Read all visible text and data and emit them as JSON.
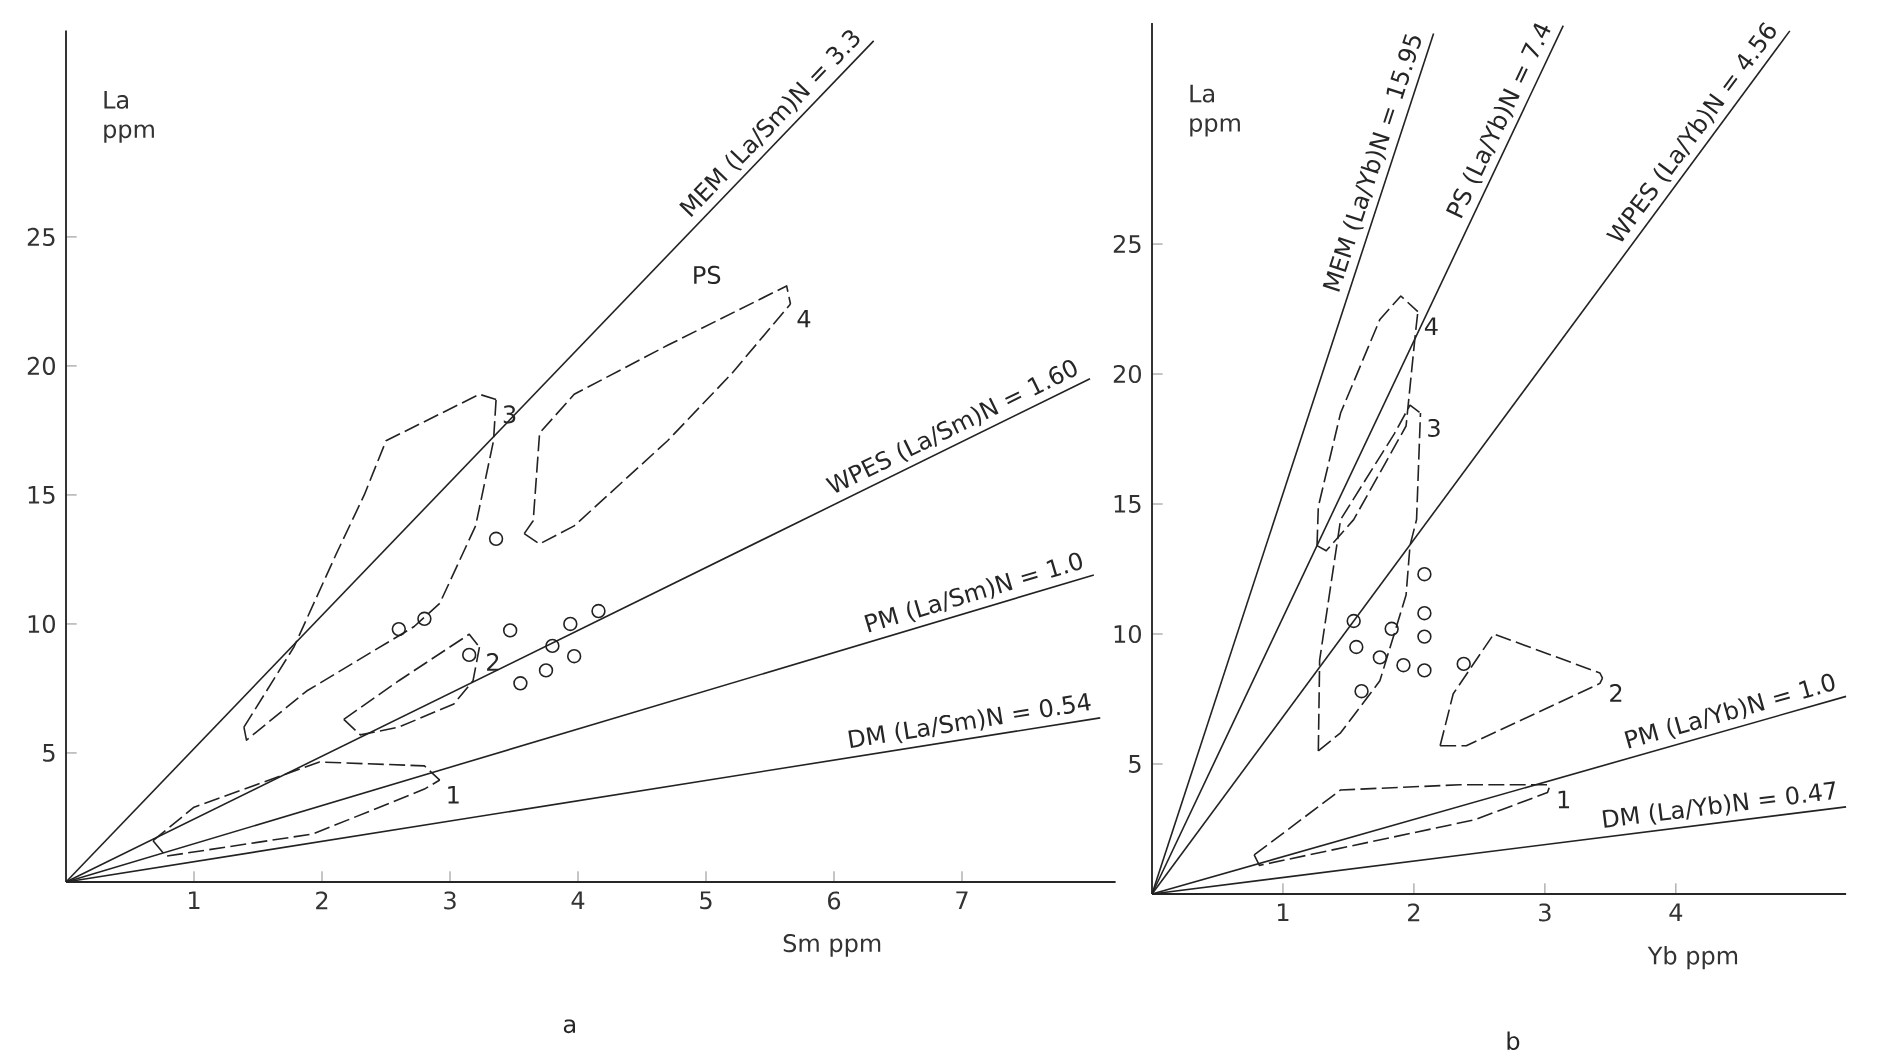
{
  "chart_data": [
    {
      "type": "line",
      "xlabel": "Sm  ppm",
      "ylabel": "La ppm",
      "xlim": [
        0,
        8.2
      ],
      "ylim": [
        0,
        33
      ],
      "xticks": [
        1,
        2,
        3,
        4,
        5,
        6,
        7
      ],
      "yticks": [
        5,
        10,
        15,
        20,
        25
      ],
      "series": [
        {
          "name": "MEM  (La/Sm)N = 3.3",
          "color": "#222222",
          "line_style": "solid",
          "x": [
            0,
            6.31
          ],
          "values": [
            0,
            32.6
          ]
        },
        {
          "name": "WPES  (La/Sm)N = 1.60",
          "color": "#222222",
          "line_style": "solid",
          "x": [
            0,
            8.0
          ],
          "values": [
            0,
            19.5
          ]
        },
        {
          "name": "PM (La/Sm)N = 1.0",
          "color": "#222222",
          "line_style": "solid",
          "x": [
            0,
            8.03
          ],
          "values": [
            0,
            11.9
          ]
        },
        {
          "name": "DM (La/Sm)N = 0.54",
          "color": "#222222",
          "line_style": "solid",
          "x": [
            0,
            8.08
          ],
          "values": [
            0,
            6.36
          ]
        },
        {
          "color": "#222222",
          "line_style": "dashed",
          "x": [
            0.68,
            1.0,
            1.98,
            2.8,
            2.92
          ],
          "values": [
            1.6,
            2.9,
            4.65,
            4.5,
            3.95
          ]
        },
        {
          "name": "1",
          "color": "#222222",
          "line_style": "dashed",
          "x": [
            0.68,
            0.78,
            1.93,
            2.8,
            2.92
          ],
          "values": [
            1.6,
            1.0,
            1.86,
            3.6,
            3.95
          ]
        },
        {
          "color": "#222222",
          "line_style": "dashed",
          "x": [
            2.17,
            2.6,
            3.15,
            3.23
          ],
          "values": [
            6.3,
            7.8,
            9.6,
            9.1
          ]
        },
        {
          "name": "2",
          "color": "#222222",
          "line_style": "dashed",
          "x": [
            2.17,
            2.3,
            2.6,
            3.03,
            3.18,
            3.23
          ],
          "values": [
            6.3,
            5.7,
            6.0,
            6.9,
            7.8,
            9.1
          ]
        },
        {
          "color": "#222222",
          "line_style": "dashed",
          "x": [
            1.39,
            1.78,
            2.11,
            2.33,
            2.5,
            3.23,
            3.36
          ],
          "values": [
            6.0,
            9.1,
            12.7,
            15.0,
            17.1,
            18.9,
            18.7
          ]
        },
        {
          "name": "3",
          "color": "#222222",
          "line_style": "dashed",
          "x": [
            1.39,
            1.41,
            1.88,
            2.72,
            2.92,
            3.2,
            3.34,
            3.36
          ],
          "values": [
            6.0,
            5.5,
            7.4,
            9.9,
            10.8,
            13.8,
            17.1,
            18.7
          ]
        },
        {
          "color": "#222222",
          "line_style": "dashed",
          "x": [
            3.58,
            3.65,
            3.7,
            3.97,
            4.7,
            5.63,
            5.66
          ],
          "values": [
            13.5,
            14.0,
            17.4,
            18.9,
            20.8,
            23.1,
            22.4
          ]
        },
        {
          "name": "4",
          "color": "#222222",
          "line_style": "dashed",
          "x": [
            3.58,
            3.7,
            3.97,
            4.7,
            5.2,
            5.66
          ],
          "values": [
            13.5,
            13.1,
            13.8,
            17.1,
            19.7,
            22.4
          ]
        },
        {
          "type": "scatter",
          "marker": "circle",
          "color": "#222222",
          "x": [
            2.6,
            2.8,
            3.15,
            3.47,
            3.8,
            3.94,
            4.16,
            3.55,
            3.75,
            3.97,
            3.36
          ],
          "values": [
            9.8,
            10.2,
            8.8,
            9.75,
            9.15,
            10.0,
            10.5,
            7.7,
            8.2,
            8.75,
            13.3
          ]
        }
      ],
      "annotations": [
        "a",
        "PS"
      ]
    },
    {
      "type": "line",
      "xlabel": "Yb  ppm",
      "ylabel": "La ppm",
      "xlim": [
        0,
        5.3
      ],
      "ylim": [
        0,
        33.5
      ],
      "xticks": [
        1,
        2,
        3,
        4
      ],
      "yticks": [
        5,
        10,
        15,
        20,
        25
      ],
      "series": [
        {
          "name": "MEM (La/Yb)N = 15.95",
          "color": "#222222",
          "line_style": "solid",
          "x": [
            0,
            2.15
          ],
          "values": [
            0,
            33.1
          ]
        },
        {
          "name": "PS (La/Yb)N = 7.4",
          "color": "#222222",
          "line_style": "solid",
          "x": [
            0,
            3.14
          ],
          "values": [
            0,
            33.4
          ]
        },
        {
          "name": "WPES (La/Yb)N = 4.56",
          "color": "#222222",
          "line_style": "solid",
          "x": [
            0,
            4.87
          ],
          "values": [
            0,
            33.2
          ]
        },
        {
          "name": "PM (La/Yb)N = 1.0",
          "color": "#222222",
          "line_style": "solid",
          "x": [
            0,
            5.3
          ],
          "values": [
            0,
            7.6
          ]
        },
        {
          "name": "DM (La/Yb)N = 0.47",
          "color": "#222222",
          "line_style": "solid",
          "x": [
            0,
            5.3
          ],
          "values": [
            0,
            3.35
          ]
        },
        {
          "color": "#222222",
          "line_style": "dashed",
          "x": [
            0.78,
            1.44,
            2.35,
            3.04
          ],
          "values": [
            1.5,
            4.0,
            4.2,
            4.2
          ]
        },
        {
          "name": "1",
          "color": "#222222",
          "line_style": "dashed",
          "x": [
            0.78,
            0.82,
            2.46,
            3.02,
            3.04
          ],
          "values": [
            1.5,
            1.1,
            2.85,
            3.9,
            4.2
          ]
        },
        {
          "color": "#222222",
          "line_style": "dashed",
          "x": [
            2.2,
            2.3,
            2.61,
            3.42,
            3.44
          ],
          "values": [
            5.7,
            7.7,
            10.0,
            8.5,
            8.3
          ]
        },
        {
          "name": "2",
          "color": "#222222",
          "line_style": "dashed",
          "x": [
            2.2,
            2.4,
            3.42,
            3.44
          ],
          "values": [
            5.7,
            5.7,
            8.1,
            8.3
          ]
        },
        {
          "color": "#222222",
          "line_style": "dashed",
          "x": [
            1.27,
            1.28,
            1.44,
            1.85,
            1.97,
            2.05
          ],
          "values": [
            5.5,
            9.0,
            14.4,
            17.7,
            18.8,
            18.5
          ]
        },
        {
          "name": "3",
          "color": "#222222",
          "line_style": "dashed",
          "x": [
            1.27,
            1.44,
            1.74,
            1.94,
            1.97,
            2.02,
            2.05
          ],
          "values": [
            5.5,
            6.2,
            8.2,
            11.5,
            13.4,
            14.4,
            18.5
          ]
        },
        {
          "color": "#222222",
          "line_style": "dashed",
          "x": [
            1.26,
            1.27,
            1.44,
            1.74,
            1.9,
            2.03
          ],
          "values": [
            13.4,
            14.9,
            18.5,
            22.1,
            23.0,
            22.4
          ]
        },
        {
          "name": "4",
          "color": "#222222",
          "line_style": "dashed",
          "x": [
            1.26,
            1.33,
            1.54,
            1.94,
            2.01,
            2.03
          ],
          "values": [
            13.4,
            13.2,
            14.4,
            18.0,
            21.5,
            22.4
          ]
        },
        {
          "type": "scatter",
          "marker": "circle",
          "color": "#222222",
          "x": [
            1.54,
            1.56,
            1.74,
            1.83,
            1.92,
            1.6,
            2.08,
            2.08,
            2.08,
            2.08,
            2.38
          ],
          "values": [
            10.5,
            9.5,
            9.1,
            10.2,
            8.8,
            7.8,
            12.3,
            10.8,
            9.9,
            8.6,
            8.85
          ]
        }
      ],
      "annotations": [
        "b"
      ]
    }
  ]
}
